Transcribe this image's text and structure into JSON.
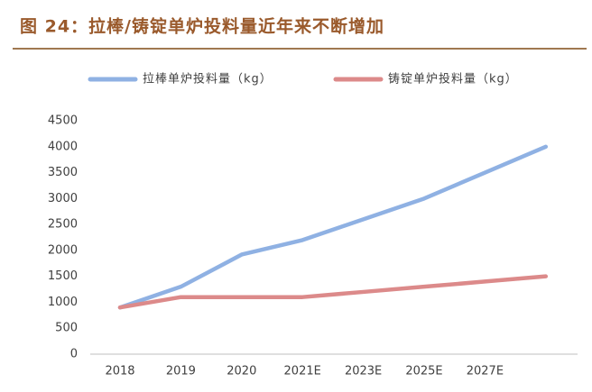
{
  "chart_data": {
    "type": "line",
    "title": "图 24：拉棒/铸锭单炉投料量近年来不断增加",
    "categories": [
      "2018",
      "2019",
      "2020",
      "2021E",
      "2023E",
      "2025E",
      "2027E",
      null
    ],
    "series": [
      {
        "name": "拉棒单炉投料量（kg）",
        "color": "#8fb1e3",
        "values": [
          900,
          1300,
          1920,
          2200,
          2600,
          3000,
          3500,
          4000
        ]
      },
      {
        "name": "铸锭单炉投料量（kg）",
        "color": "#dc8a8a",
        "values": [
          900,
          1100,
          1100,
          1100,
          1200,
          1300,
          1400,
          1500
        ]
      }
    ],
    "ylim": [
      0,
      4500
    ],
    "yticks": [
      0,
      500,
      1000,
      1500,
      2000,
      2500,
      3000,
      3500,
      4000,
      4500
    ],
    "grid": false,
    "legend": "top"
  }
}
